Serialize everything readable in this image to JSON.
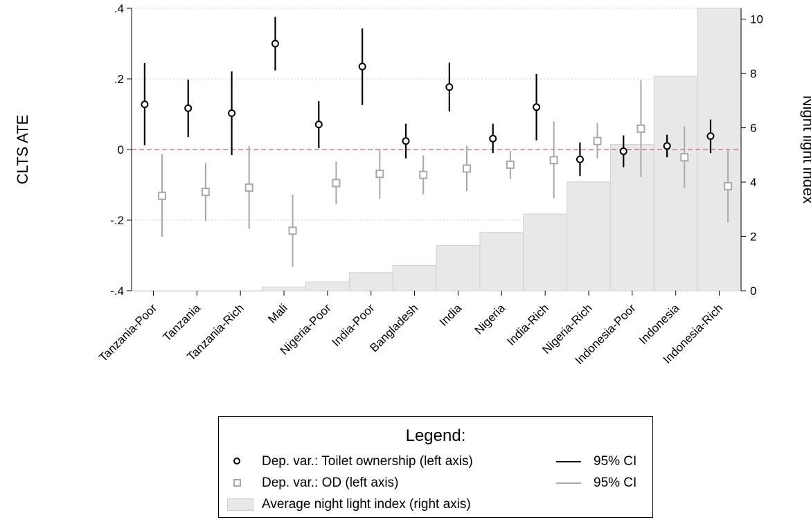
{
  "chart_data": {
    "type": "scatter",
    "categories": [
      "Tanzania-Poor",
      "Tanzania",
      "Tanzania-Rich",
      "Mali",
      "Nigeria-Poor",
      "India-Poor",
      "Bangladesh",
      "India",
      "Nigeria",
      "India-Rich",
      "Nigeria-Rich",
      "Indonesia-Poor",
      "Indonesia",
      "Indonesia-Rich"
    ],
    "ylabel": "CLTS ATE",
    "y2label": "Night light index",
    "ylim": [
      -0.4,
      0.4
    ],
    "y2lim": [
      0,
      10.4
    ],
    "yticks": [
      -0.4,
      -0.2,
      0,
      0.2,
      0.4
    ],
    "ytick_labels": [
      "-.4",
      "-.2",
      "0",
      ".2",
      ".4"
    ],
    "y2ticks": [
      0,
      2,
      4,
      6,
      8,
      10
    ],
    "y2tick_labels": [
      "0",
      "2",
      "4",
      "6",
      "8",
      "10"
    ],
    "grid": true,
    "reference_line": 0,
    "series": [
      {
        "name": "Dep. var.: Toilet ownership (left axis)",
        "axis": "left",
        "marker": "circle",
        "color": "#000000",
        "values": [
          0.128,
          0.117,
          0.103,
          0.3,
          0.071,
          0.235,
          0.024,
          0.177,
          0.031,
          0.12,
          -0.028,
          -0.005,
          0.01,
          0.038
        ],
        "ci_low": [
          0.012,
          0.035,
          -0.016,
          0.224,
          0.004,
          0.126,
          -0.025,
          0.108,
          -0.01,
          0.026,
          -0.075,
          -0.05,
          -0.022,
          -0.01
        ],
        "ci_high": [
          0.245,
          0.198,
          0.221,
          0.376,
          0.137,
          0.343,
          0.073,
          0.246,
          0.073,
          0.214,
          0.02,
          0.04,
          0.042,
          0.085
        ]
      },
      {
        "name": "Dep. var.: OD (left axis)",
        "axis": "left",
        "marker": "square",
        "color": "#a8a8a8",
        "values": [
          -0.131,
          -0.12,
          -0.108,
          -0.23,
          -0.095,
          -0.069,
          -0.072,
          -0.054,
          -0.043,
          -0.03,
          0.024,
          0.059,
          -0.022,
          -0.104
        ],
        "ci_low": [
          -0.247,
          -0.202,
          -0.225,
          -0.332,
          -0.155,
          -0.14,
          -0.127,
          -0.118,
          -0.083,
          -0.138,
          -0.025,
          -0.078,
          -0.108,
          -0.207
        ],
        "ci_high": [
          -0.013,
          -0.038,
          0.01,
          -0.128,
          -0.034,
          0.002,
          -0.017,
          0.01,
          -0.003,
          0.08,
          0.075,
          0.197,
          0.065,
          -0.003
        ]
      },
      {
        "name": "Average night light index (right axis)",
        "axis": "right",
        "type": "bar",
        "color": "#e8e8e8",
        "values": [
          0.0,
          0.0,
          0.0,
          0.13,
          0.33,
          0.67,
          0.93,
          1.67,
          2.15,
          2.83,
          4.01,
          5.39,
          7.9,
          10.4
        ]
      }
    ],
    "legend": {
      "title": "Legend:",
      "placement": "bottom",
      "ci_label": "95% CI"
    }
  }
}
